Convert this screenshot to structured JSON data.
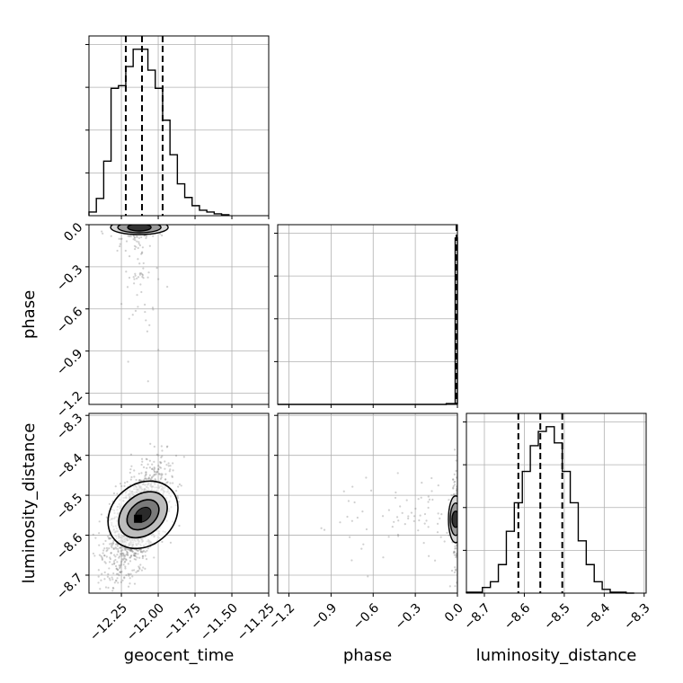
{
  "chart_data": {
    "type": "corner",
    "parameters": [
      "geocent_time",
      "phase",
      "luminosity_distance"
    ],
    "axis_labels": {
      "x": [
        "geocent_time",
        "phase",
        "luminosity_distance"
      ],
      "y": [
        "phase",
        "luminosity_distance"
      ]
    },
    "ranges": {
      "geocent_time": [
        -12.47,
        -11.25
      ],
      "phase": [
        -1.28,
        0.0
      ],
      "luminosity_distance": [
        -8.745,
        -8.295
      ]
    },
    "ticks": {
      "geocent_time": [
        -12.25,
        -12.0,
        -11.75,
        -11.5,
        -11.25
      ],
      "phase": [
        -1.2,
        -0.9,
        -0.6,
        -0.3,
        0.0
      ],
      "luminosity_distance": [
        -8.7,
        -8.6,
        -8.5,
        -8.4,
        -8.3
      ]
    },
    "tick_labels": {
      "geocent_time": [
        "−12.25",
        "−12.00",
        "−11.75",
        "−11.50",
        "−11.25"
      ],
      "phase": [
        "−1.2",
        "−0.9",
        "−0.6",
        "−0.3",
        "0.0"
      ],
      "luminosity_distance": [
        "−8.7",
        "−8.6",
        "−8.5",
        "−8.4",
        "−8.3"
      ]
    },
    "quantiles": {
      "geocent_time": [
        -12.22,
        -12.11,
        -11.97
      ],
      "phase": [
        -0.005,
        -0.003,
        -0.001
      ],
      "luminosity_distance": [
        -8.615,
        -8.56,
        -8.505
      ]
    },
    "histograms": {
      "geocent_time": {
        "bins": [
          -12.47,
          -12.42,
          -12.37,
          -12.32,
          -12.27,
          -12.22,
          -12.17,
          -12.12,
          -12.07,
          -12.02,
          -11.97,
          -11.92,
          -11.87,
          -11.82,
          -11.77,
          -11.72,
          -11.67,
          -11.62,
          -11.57,
          -11.52
        ],
        "counts": [
          4,
          19,
          60,
          140,
          143,
          164,
          183,
          183,
          160,
          140,
          105,
          67,
          35,
          20,
          11,
          6,
          4,
          2,
          1,
          0
        ]
      },
      "phase": {
        "bins": [
          -1.28,
          -1.2,
          -1.12,
          -1.04,
          -0.96,
          -0.88,
          -0.8,
          -0.72,
          -0.64,
          -0.56,
          -0.48,
          -0.4,
          -0.32,
          -0.24,
          -0.16,
          -0.08,
          -0.016,
          0.0
        ],
        "counts": [
          0,
          0,
          0,
          0,
          0,
          0,
          0,
          0,
          0,
          0,
          0,
          0,
          0,
          0,
          0,
          1,
          190
        ]
      },
      "luminosity_distance": {
        "bins": [
          -8.745,
          -8.725,
          -8.705,
          -8.685,
          -8.665,
          -8.645,
          -8.625,
          -8.605,
          -8.585,
          -8.565,
          -8.545,
          -8.525,
          -8.505,
          -8.485,
          -8.465,
          -8.445,
          -8.425,
          -8.405,
          -8.385,
          -8.365,
          -8.345,
          -8.325
        ],
        "counts": [
          1,
          1,
          6,
          12,
          30,
          65,
          95,
          128,
          155,
          170,
          175,
          158,
          128,
          95,
          55,
          30,
          12,
          4,
          1,
          1,
          0
        ]
      }
    },
    "scatter_2d": {
      "geocent_time_vs_phase": {
        "center": [
          -12.14,
          -0.005
        ],
        "spread": [
          0.07,
          0.25
        ],
        "points": 240
      },
      "geocent_time_vs_luminosity_distance": {
        "center": [
          -12.14,
          -8.56
        ],
        "spread": [
          0.1,
          0.065
        ],
        "correlation": 0.55,
        "points": 1600
      },
      "phase_vs_luminosity_distance": {
        "center": [
          -0.004,
          -8.56
        ],
        "spread": [
          0.3,
          0.06
        ],
        "points": 220
      }
    }
  }
}
